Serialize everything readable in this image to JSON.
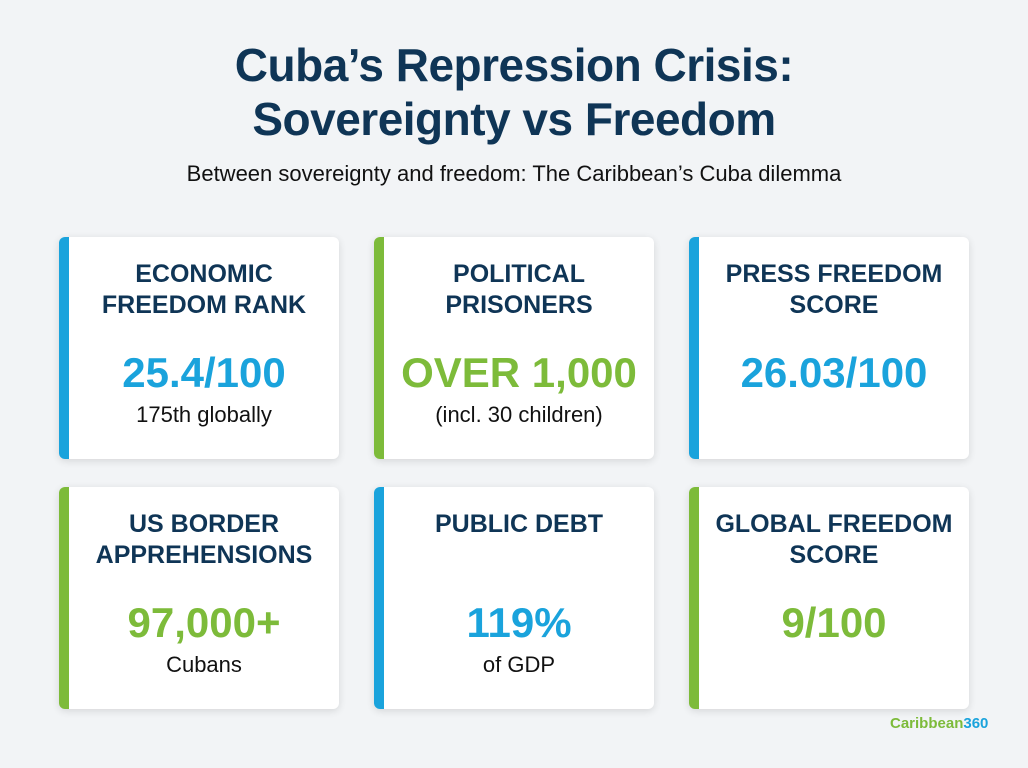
{
  "header": {
    "title_line1": "Cuba’s Repression Crisis:",
    "title_line2": "Sovereignty vs Freedom",
    "subtitle": "Between sovereignty and freedom: The Caribbean’s Cuba dilemma"
  },
  "colors": {
    "blue": "#1aa3dc",
    "green": "#7dbb3a",
    "navy": "#0f3556"
  },
  "cards": [
    {
      "label_l1": "ECONOMIC",
      "label_l2": "FREEDOM RANK",
      "value": "25.4/100",
      "note": "175th globally",
      "accent": "blue"
    },
    {
      "label_l1": "POLITICAL",
      "label_l2": "PRISONERS",
      "value": "OVER 1,000",
      "note": "(incl. 30 children)",
      "accent": "green"
    },
    {
      "label_l1": "PRESS FREEDOM",
      "label_l2": "SCORE",
      "value": "26.03/100",
      "note": "",
      "accent": "blue"
    },
    {
      "label_l1": "US BORDER",
      "label_l2": "APPREHENSIONS",
      "value": "97,000+",
      "note": "Cubans",
      "accent": "green"
    },
    {
      "label_l1": "PUBLIC DEBT",
      "label_l2": "",
      "value": "119%",
      "note": "of GDP",
      "accent": "blue"
    },
    {
      "label_l1": "GLOBAL FREEDOM",
      "label_l2": "SCORE",
      "value": "9/100",
      "note": "",
      "accent": "green"
    }
  ],
  "logo": {
    "part1": "Caribbean",
    "part2": "360"
  }
}
